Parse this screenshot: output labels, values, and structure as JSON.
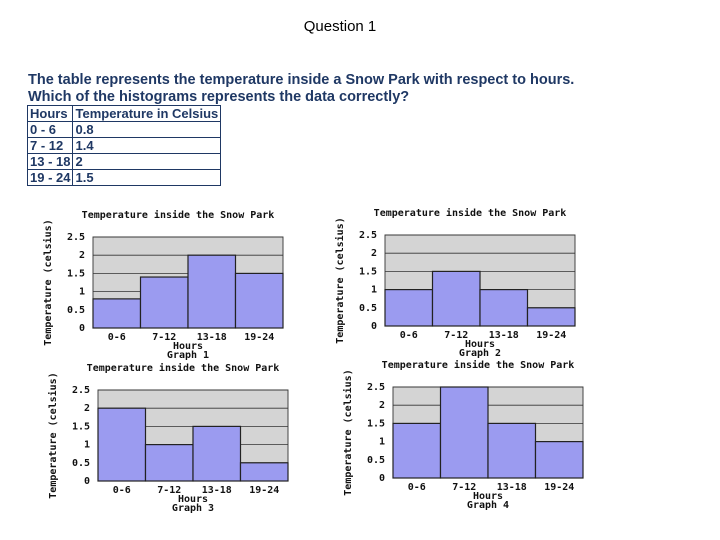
{
  "slide_title": "Question 1",
  "question": [
    "The table represents the temperature inside a Snow Park with respect to hours.",
    "Which of the histograms represents the data correctly?"
  ],
  "table": {
    "header": [
      "Hours",
      "Temperature in Celsius"
    ],
    "rows": [
      [
        "0 - 6",
        "0.8"
      ],
      [
        "7 - 12",
        "1.4"
      ],
      [
        "13 - 18",
        "2"
      ],
      [
        "19 - 24",
        "1.5"
      ]
    ]
  },
  "chart_data": [
    {
      "type": "bar",
      "title": "Temperature inside the Snow Park",
      "caption": "Graph 1",
      "xlabel": "Hours",
      "ylabel": "Temperature (celsius)",
      "categories": [
        "0-6",
        "7-12",
        "13-18",
        "19-24"
      ],
      "values": [
        0.8,
        1.4,
        2,
        1.5
      ],
      "color": "#9b9bf0",
      "ylim": [
        0,
        2.5
      ],
      "yticks": [
        0,
        0.5,
        1,
        1.5,
        2,
        2.5
      ],
      "grid": true
    },
    {
      "type": "bar",
      "title": "Temperature inside the Snow Park",
      "caption": "Graph 2",
      "xlabel": "Hours",
      "ylabel": "Temperature (celsius)",
      "categories": [
        "0-6",
        "7-12",
        "13-18",
        "19-24"
      ],
      "values": [
        1,
        1.5,
        1,
        0.5
      ],
      "color": "#9b9bf0",
      "ylim": [
        0,
        2.5
      ],
      "yticks": [
        0,
        0.5,
        1,
        1.5,
        2,
        2.5
      ],
      "grid": true
    },
    {
      "type": "bar",
      "title": "Temperature inside the Snow Park",
      "caption": "Graph 3",
      "xlabel": "Hours",
      "ylabel": "Temperature (celsius)",
      "categories": [
        "0-6",
        "7-12",
        "13-18",
        "19-24"
      ],
      "values": [
        2,
        1,
        1.5,
        0.5
      ],
      "color": "#9b9bf0",
      "ylim": [
        0,
        2.5
      ],
      "yticks": [
        0,
        0.5,
        1,
        1.5,
        2,
        2.5
      ],
      "grid": true
    },
    {
      "type": "bar",
      "title": "Temperature inside the Snow Park",
      "caption": "Graph 4",
      "xlabel": "Hours",
      "ylabel": "Temperature (celsius)",
      "categories": [
        "0-6",
        "7-12",
        "13-18",
        "19-24"
      ],
      "values": [
        1.5,
        2.5,
        1.5,
        1
      ],
      "color": "#9b9bf0",
      "ylim": [
        0,
        2.5
      ],
      "yticks": [
        0,
        0.5,
        1,
        1.5,
        2,
        2.5
      ],
      "grid": true
    }
  ]
}
